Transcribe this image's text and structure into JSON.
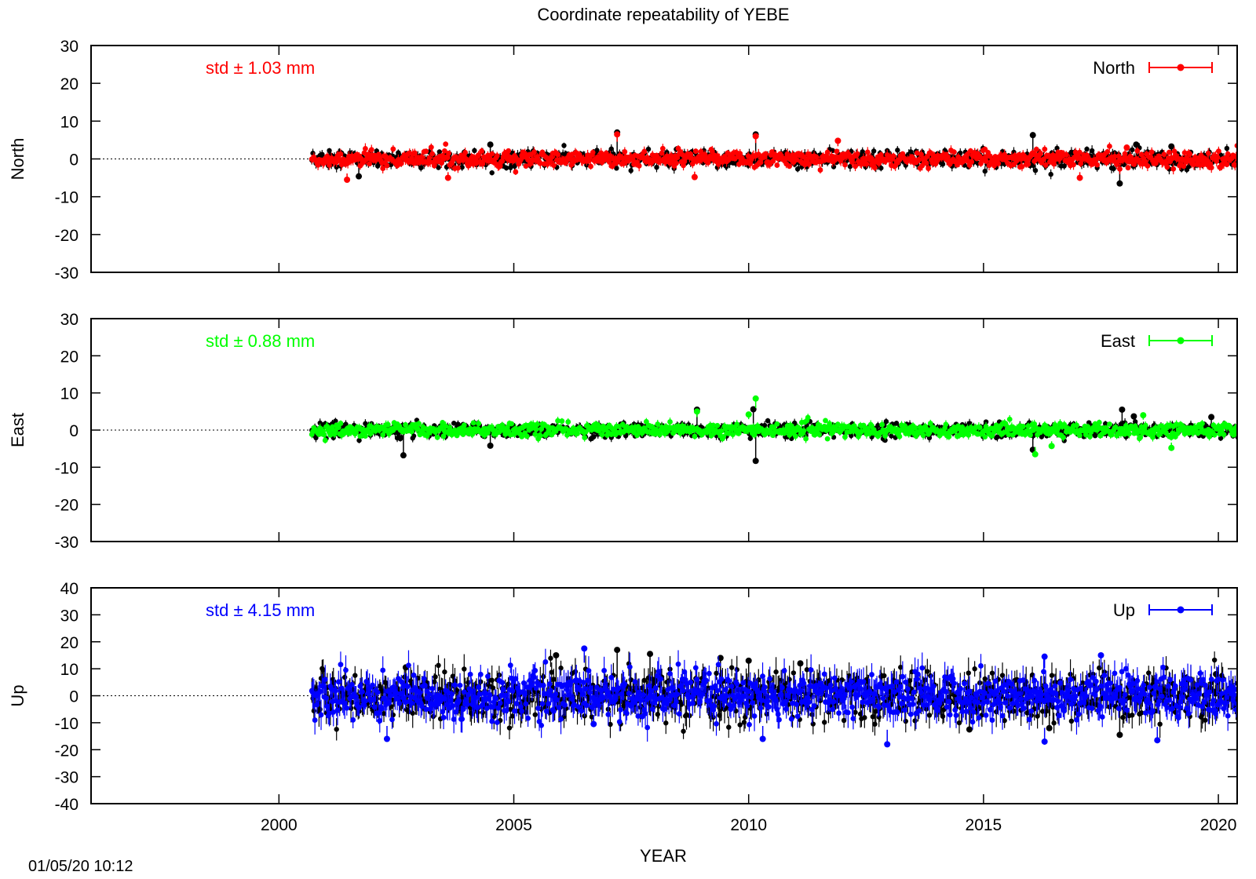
{
  "figure": {
    "title": "Coordinate repeatability of YEBE",
    "xlabel": "YEAR",
    "timestamp": "01/05/20 10:12",
    "x_ticks": [
      2000,
      2005,
      2010,
      2015,
      2020
    ],
    "xlim": [
      1996,
      2020.4
    ],
    "residual_color": "#000000"
  },
  "chart_data": [
    {
      "type": "scatter",
      "panel": "north",
      "ylabel": "North",
      "legend": "North",
      "legend_position": "top-right",
      "std_label": "std ± 1.03 mm",
      "color": "#ff0000",
      "ylim": [
        -30,
        30
      ],
      "y_ticks": [
        30,
        20,
        10,
        0,
        -10,
        -20,
        -30
      ],
      "x_range": [
        2000.7,
        2020.4
      ],
      "noise_amplitude": 1.03,
      "outliers": [
        {
          "x": 2001.45,
          "y": -5.5
        },
        {
          "x": 2003.6,
          "y": -5.0
        },
        {
          "x": 2007.2,
          "y": 6.5
        },
        {
          "x": 2008.85,
          "y": -4.8
        },
        {
          "x": 2010.15,
          "y": 6.0
        },
        {
          "x": 2011.9,
          "y": 4.8
        },
        {
          "x": 2017.05,
          "y": -5.0
        },
        {
          "x": 2018.05,
          "y": 3.0
        }
      ],
      "black_outliers": [
        {
          "x": 2001.7,
          "y": -4.6
        },
        {
          "x": 2004.5,
          "y": 3.8
        },
        {
          "x": 2007.2,
          "y": 7.0
        },
        {
          "x": 2010.15,
          "y": 6.5
        },
        {
          "x": 2016.05,
          "y": 6.3
        },
        {
          "x": 2017.9,
          "y": -6.5
        },
        {
          "x": 2018.25,
          "y": 3.8
        },
        {
          "x": 2019.0,
          "y": 3.3
        }
      ]
    },
    {
      "type": "scatter",
      "panel": "east",
      "ylabel": "East",
      "legend": "East",
      "legend_position": "top-right",
      "std_label": "std ± 0.88 mm",
      "color": "#00ff00",
      "ylim": [
        -30,
        30
      ],
      "y_ticks": [
        30,
        20,
        10,
        0,
        -10,
        -20,
        -30
      ],
      "x_range": [
        2000.7,
        2020.4
      ],
      "noise_amplitude": 0.88,
      "outliers": [
        {
          "x": 2008.9,
          "y": 5.0
        },
        {
          "x": 2010.0,
          "y": 4.2
        },
        {
          "x": 2010.15,
          "y": 8.5
        },
        {
          "x": 2016.1,
          "y": -6.5
        },
        {
          "x": 2016.45,
          "y": -4.3
        },
        {
          "x": 2018.4,
          "y": 4.0
        },
        {
          "x": 2019.0,
          "y": -4.8
        }
      ],
      "black_outliers": [
        {
          "x": 2002.65,
          "y": -6.8
        },
        {
          "x": 2004.5,
          "y": -4.2
        },
        {
          "x": 2008.9,
          "y": 5.5
        },
        {
          "x": 2010.15,
          "y": -8.3
        },
        {
          "x": 2010.1,
          "y": 5.6
        },
        {
          "x": 2016.05,
          "y": -5.3
        },
        {
          "x": 2017.95,
          "y": 5.5
        },
        {
          "x": 2018.2,
          "y": 3.7
        },
        {
          "x": 2019.85,
          "y": 3.5
        }
      ]
    },
    {
      "type": "scatter",
      "panel": "up",
      "ylabel": "Up",
      "legend": "Up",
      "legend_position": "top-right",
      "std_label": "std ± 4.15 mm",
      "color": "#0000ff",
      "ylim": [
        -40,
        40
      ],
      "y_ticks": [
        40,
        30,
        20,
        10,
        0,
        -10,
        -20,
        -30,
        -40
      ],
      "x_range": [
        2000.7,
        2020.4
      ],
      "noise_amplitude": 4.15,
      "outliers": [
        {
          "x": 2002.3,
          "y": -16.0
        },
        {
          "x": 2006.5,
          "y": 17.5
        },
        {
          "x": 2006.7,
          "y": -10.5
        },
        {
          "x": 2010.3,
          "y": -16.0
        },
        {
          "x": 2012.95,
          "y": -18.0
        },
        {
          "x": 2016.3,
          "y": -17.0
        },
        {
          "x": 2016.3,
          "y": 14.5
        },
        {
          "x": 2017.5,
          "y": 15.0
        },
        {
          "x": 2018.7,
          "y": -16.5
        }
      ],
      "black_outliers": [
        {
          "x": 2002.7,
          "y": 10.5
        },
        {
          "x": 2005.9,
          "y": 15.0
        },
        {
          "x": 2007.2,
          "y": 17.0
        },
        {
          "x": 2007.9,
          "y": 15.5
        },
        {
          "x": 2009.4,
          "y": 14.0
        },
        {
          "x": 2010.0,
          "y": 13.0
        },
        {
          "x": 2011.1,
          "y": 12.0
        },
        {
          "x": 2014.7,
          "y": -12.5
        },
        {
          "x": 2016.4,
          "y": -12.0
        },
        {
          "x": 2017.9,
          "y": -14.5
        },
        {
          "x": 2019.95,
          "y": 8.0
        }
      ]
    }
  ]
}
